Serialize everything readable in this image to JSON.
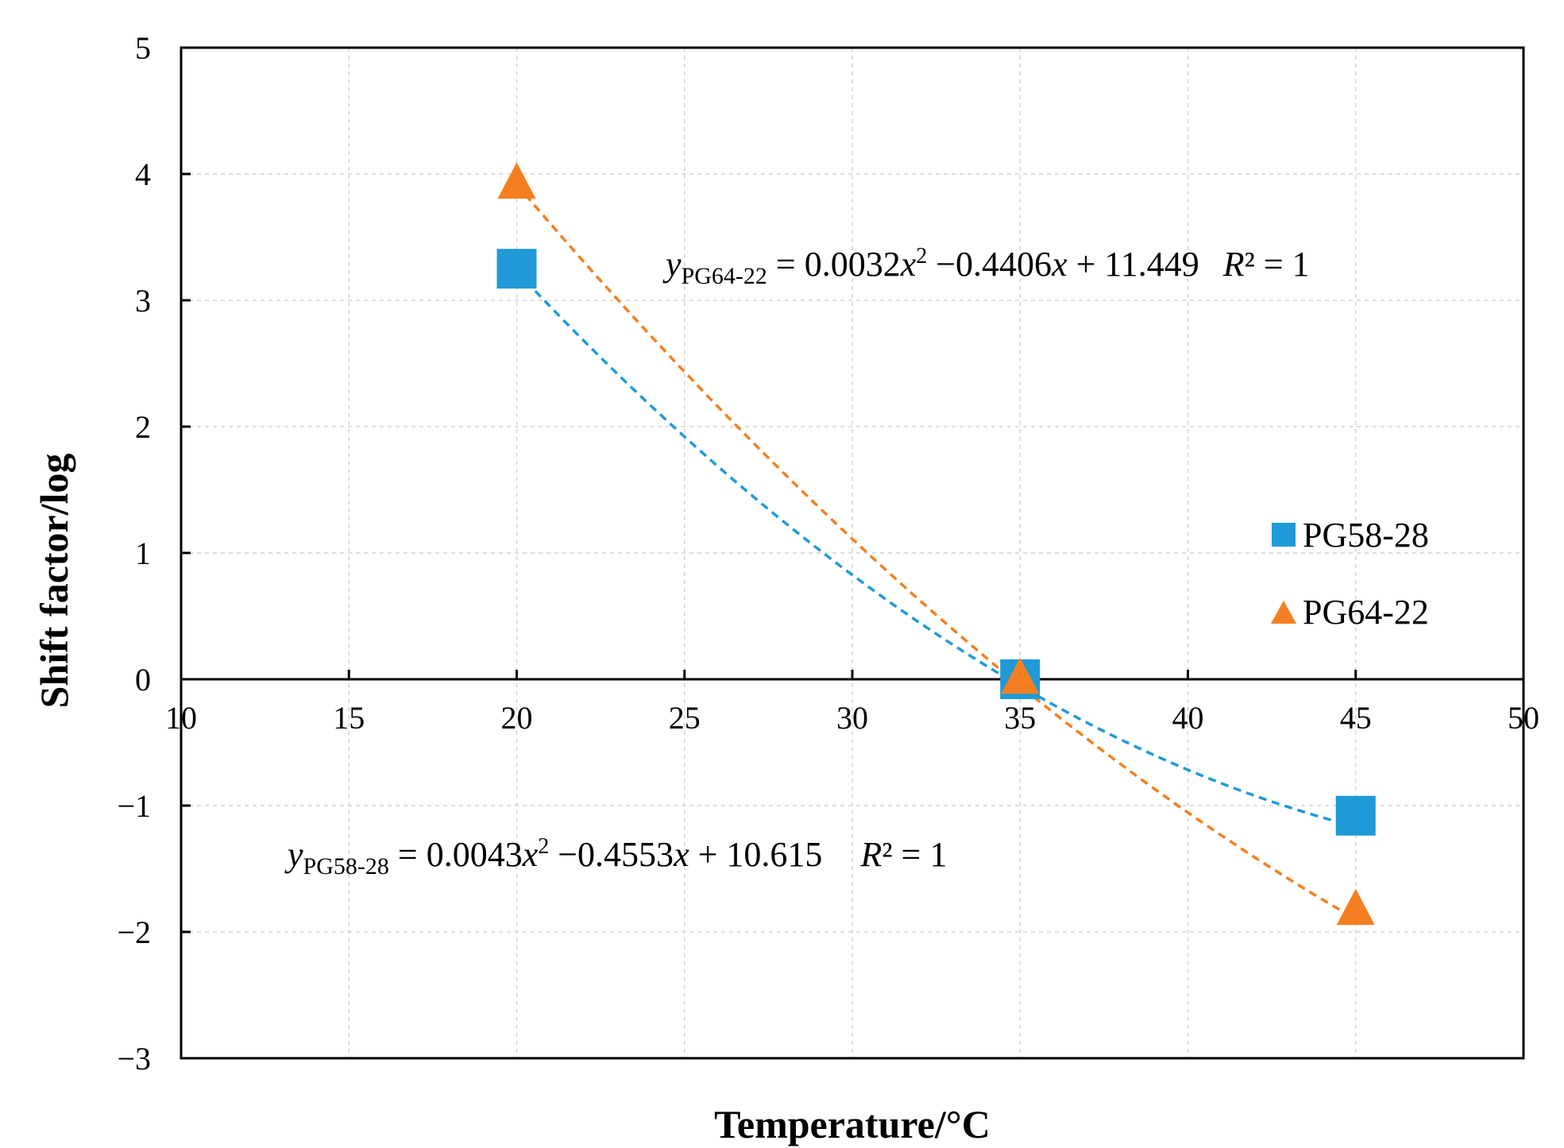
{
  "chart_data": {
    "type": "scatter",
    "title": "",
    "xlabel": "Temperature/°C",
    "ylabel": "Shift factor/log",
    "xlim": [
      10,
      50
    ],
    "ylim": [
      -3,
      5
    ],
    "x_ticks": [
      "10",
      "15",
      "20",
      "25",
      "30",
      "35",
      "40",
      "45",
      "50"
    ],
    "y_ticks": [
      "−3",
      "−2",
      "−1",
      "0",
      "1",
      "2",
      "3",
      "4",
      "5"
    ],
    "grid": true,
    "legend_position": "right",
    "series": [
      {
        "name": "PG58-28",
        "marker": "square",
        "color": "#1f9ad6",
        "x": [
          20,
          35,
          45
        ],
        "y": [
          3.25,
          0,
          -1.08
        ],
        "trendline": {
          "type": "poly2",
          "coef": [
            0.0043,
            -0.4553,
            10.615
          ],
          "x_range": [
            20,
            45
          ]
        }
      },
      {
        "name": "PG64-22",
        "marker": "triangle",
        "color": "#f57f20",
        "x": [
          20,
          35,
          45
        ],
        "y": [
          3.92,
          0,
          -1.83
        ],
        "trendline": {
          "type": "poly2",
          "coef": [
            0.0032,
            -0.4406,
            11.449
          ],
          "x_range": [
            20,
            45
          ]
        }
      }
    ],
    "annotations": [
      {
        "id": "eq_pg64",
        "y_var": "y",
        "subscript": "PG64-22",
        "rhs_a": " = 0.0032",
        "x1": "x",
        "sup": "2",
        "rhs_b": " −0.4406",
        "x2": "x",
        "rhs_c": " + 11.449",
        "r_label": "R",
        "r_rest": "² = 1"
      },
      {
        "id": "eq_pg58",
        "y_var": "y",
        "subscript": "PG58-28",
        "rhs_a": " = 0.0043",
        "x1": "x",
        "sup": "2",
        "rhs_b": " −0.4553",
        "x2": "x",
        "rhs_c": " + 10.615",
        "r_label": "R",
        "r_rest": "² = 1"
      }
    ]
  }
}
